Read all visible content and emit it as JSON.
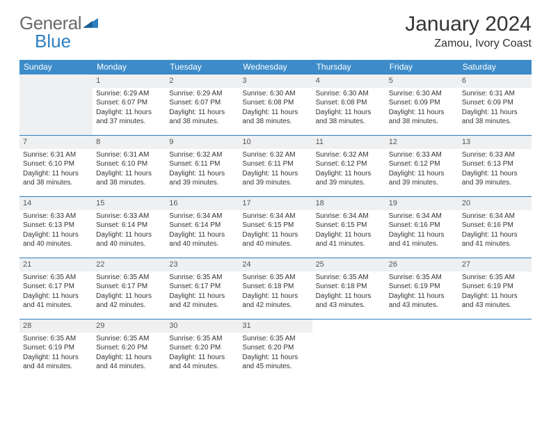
{
  "brand": {
    "line1": "General",
    "line2": "Blue"
  },
  "title": "January 2024",
  "location": "Zamou, Ivory Coast",
  "colors": {
    "header_bg": "#3d8cc9",
    "header_text": "#ffffff",
    "rule": "#2d7fc1",
    "daynum_bg": "#eef0f2",
    "body_text": "#333333",
    "logo_gray": "#6a6a6a",
    "logo_blue": "#2d7fc1"
  },
  "weekdays": [
    "Sunday",
    "Monday",
    "Tuesday",
    "Wednesday",
    "Thursday",
    "Friday",
    "Saturday"
  ],
  "leading_blanks": 1,
  "days": [
    {
      "n": "1",
      "sunrise": "6:29 AM",
      "sunset": "6:07 PM",
      "daylight": "11 hours and 37 minutes."
    },
    {
      "n": "2",
      "sunrise": "6:29 AM",
      "sunset": "6:07 PM",
      "daylight": "11 hours and 38 minutes."
    },
    {
      "n": "3",
      "sunrise": "6:30 AM",
      "sunset": "6:08 PM",
      "daylight": "11 hours and 38 minutes."
    },
    {
      "n": "4",
      "sunrise": "6:30 AM",
      "sunset": "6:08 PM",
      "daylight": "11 hours and 38 minutes."
    },
    {
      "n": "5",
      "sunrise": "6:30 AM",
      "sunset": "6:09 PM",
      "daylight": "11 hours and 38 minutes."
    },
    {
      "n": "6",
      "sunrise": "6:31 AM",
      "sunset": "6:09 PM",
      "daylight": "11 hours and 38 minutes."
    },
    {
      "n": "7",
      "sunrise": "6:31 AM",
      "sunset": "6:10 PM",
      "daylight": "11 hours and 38 minutes."
    },
    {
      "n": "8",
      "sunrise": "6:31 AM",
      "sunset": "6:10 PM",
      "daylight": "11 hours and 38 minutes."
    },
    {
      "n": "9",
      "sunrise": "6:32 AM",
      "sunset": "6:11 PM",
      "daylight": "11 hours and 39 minutes."
    },
    {
      "n": "10",
      "sunrise": "6:32 AM",
      "sunset": "6:11 PM",
      "daylight": "11 hours and 39 minutes."
    },
    {
      "n": "11",
      "sunrise": "6:32 AM",
      "sunset": "6:12 PM",
      "daylight": "11 hours and 39 minutes."
    },
    {
      "n": "12",
      "sunrise": "6:33 AM",
      "sunset": "6:12 PM",
      "daylight": "11 hours and 39 minutes."
    },
    {
      "n": "13",
      "sunrise": "6:33 AM",
      "sunset": "6:13 PM",
      "daylight": "11 hours and 39 minutes."
    },
    {
      "n": "14",
      "sunrise": "6:33 AM",
      "sunset": "6:13 PM",
      "daylight": "11 hours and 40 minutes."
    },
    {
      "n": "15",
      "sunrise": "6:33 AM",
      "sunset": "6:14 PM",
      "daylight": "11 hours and 40 minutes."
    },
    {
      "n": "16",
      "sunrise": "6:34 AM",
      "sunset": "6:14 PM",
      "daylight": "11 hours and 40 minutes."
    },
    {
      "n": "17",
      "sunrise": "6:34 AM",
      "sunset": "6:15 PM",
      "daylight": "11 hours and 40 minutes."
    },
    {
      "n": "18",
      "sunrise": "6:34 AM",
      "sunset": "6:15 PM",
      "daylight": "11 hours and 41 minutes."
    },
    {
      "n": "19",
      "sunrise": "6:34 AM",
      "sunset": "6:16 PM",
      "daylight": "11 hours and 41 minutes."
    },
    {
      "n": "20",
      "sunrise": "6:34 AM",
      "sunset": "6:16 PM",
      "daylight": "11 hours and 41 minutes."
    },
    {
      "n": "21",
      "sunrise": "6:35 AM",
      "sunset": "6:17 PM",
      "daylight": "11 hours and 41 minutes."
    },
    {
      "n": "22",
      "sunrise": "6:35 AM",
      "sunset": "6:17 PM",
      "daylight": "11 hours and 42 minutes."
    },
    {
      "n": "23",
      "sunrise": "6:35 AM",
      "sunset": "6:17 PM",
      "daylight": "11 hours and 42 minutes."
    },
    {
      "n": "24",
      "sunrise": "6:35 AM",
      "sunset": "6:18 PM",
      "daylight": "11 hours and 42 minutes."
    },
    {
      "n": "25",
      "sunrise": "6:35 AM",
      "sunset": "6:18 PM",
      "daylight": "11 hours and 43 minutes."
    },
    {
      "n": "26",
      "sunrise": "6:35 AM",
      "sunset": "6:19 PM",
      "daylight": "11 hours and 43 minutes."
    },
    {
      "n": "27",
      "sunrise": "6:35 AM",
      "sunset": "6:19 PM",
      "daylight": "11 hours and 43 minutes."
    },
    {
      "n": "28",
      "sunrise": "6:35 AM",
      "sunset": "6:19 PM",
      "daylight": "11 hours and 44 minutes."
    },
    {
      "n": "29",
      "sunrise": "6:35 AM",
      "sunset": "6:20 PM",
      "daylight": "11 hours and 44 minutes."
    },
    {
      "n": "30",
      "sunrise": "6:35 AM",
      "sunset": "6:20 PM",
      "daylight": "11 hours and 44 minutes."
    },
    {
      "n": "31",
      "sunrise": "6:35 AM",
      "sunset": "6:20 PM",
      "daylight": "11 hours and 45 minutes."
    }
  ],
  "labels": {
    "sunrise": "Sunrise:",
    "sunset": "Sunset:",
    "daylight": "Daylight:"
  },
  "typography": {
    "title_fontsize": 30,
    "location_fontsize": 16,
    "weekday_fontsize": 12,
    "daynum_fontsize": 11,
    "body_fontsize": 10
  }
}
